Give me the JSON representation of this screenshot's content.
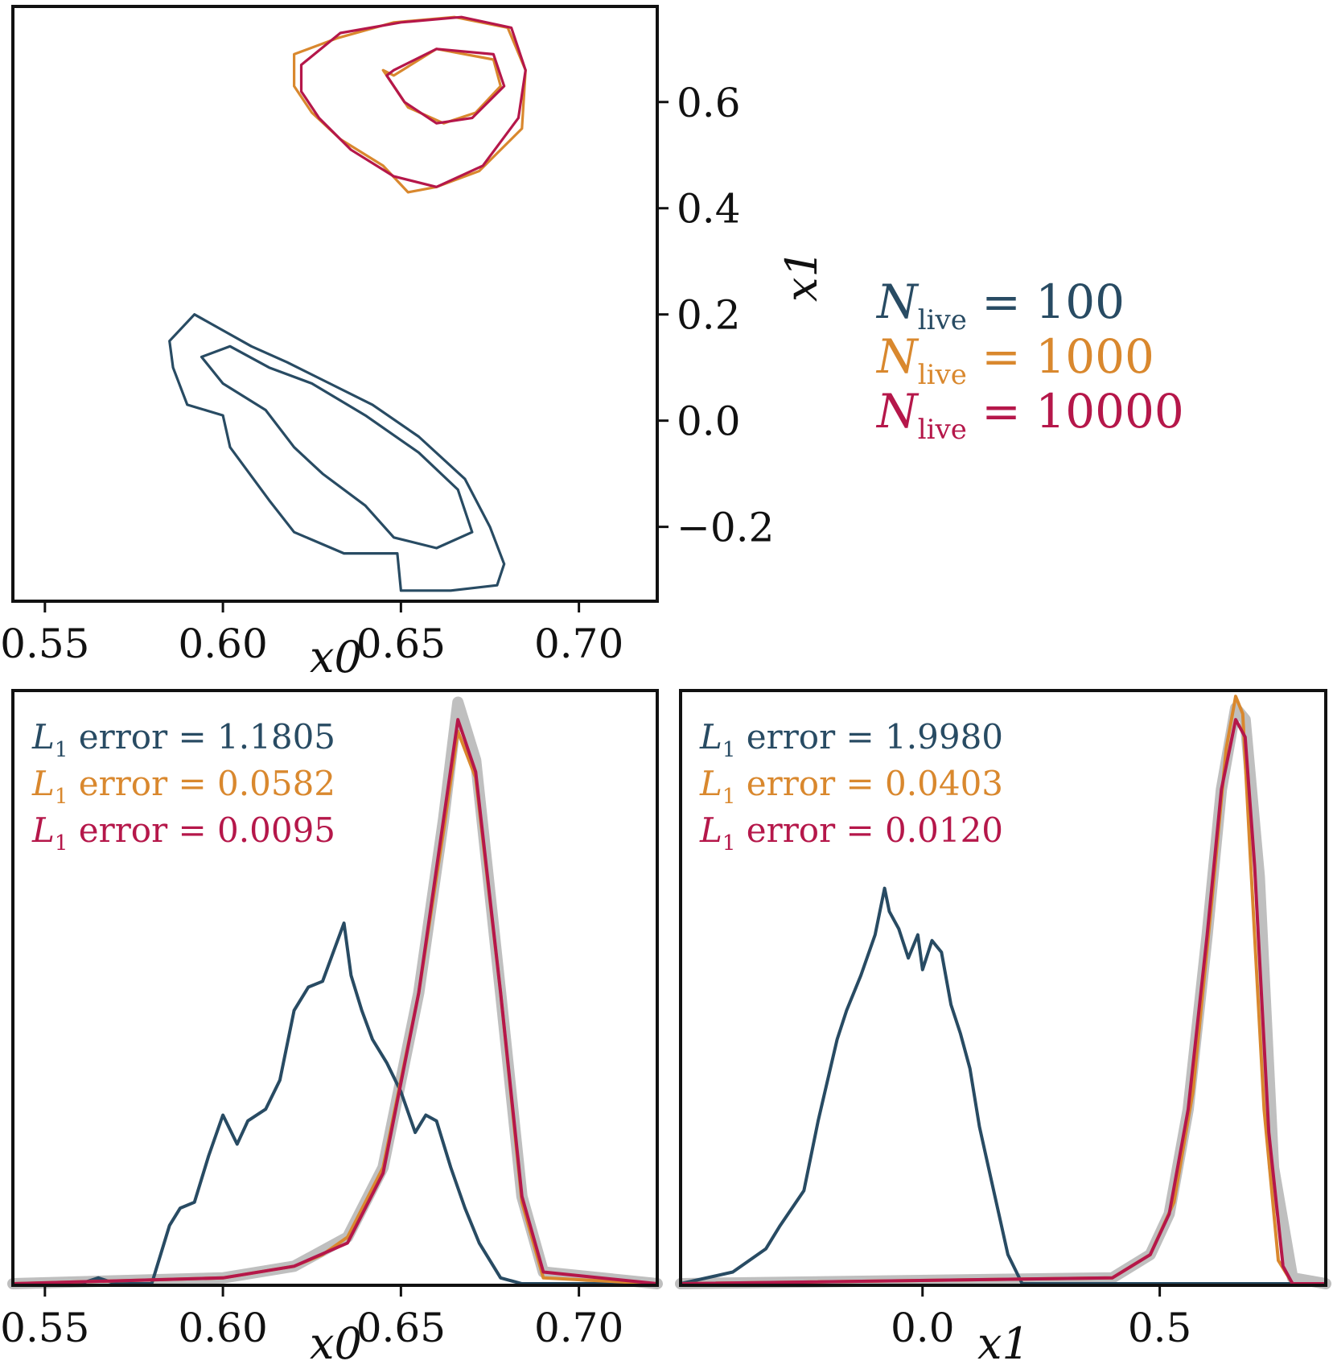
{
  "colors": {
    "n100": "#284b63",
    "n1000": "#d9882e",
    "n10000": "#b5174a",
    "truth": "#bfbfbf"
  },
  "legend": {
    "entries": [
      {
        "prefix": "N",
        "sub": "live",
        "suffix": " = 100",
        "color_key": "n100"
      },
      {
        "prefix": "N",
        "sub": "live",
        "suffix": " = 1000",
        "color_key": "n1000"
      },
      {
        "prefix": "N",
        "sub": "live",
        "suffix": " = 10000",
        "color_key": "n10000"
      }
    ]
  },
  "chart_data": [
    {
      "id": "contour",
      "type": "contour",
      "xlabel": "x0",
      "ylabel": "x1",
      "xlim": [
        0.541,
        0.722
      ],
      "ylim": [
        -0.34,
        0.78
      ],
      "xticks": [
        "0.55",
        "0.60",
        "0.65",
        "0.70"
      ],
      "xtick_values": [
        0.55,
        0.6,
        0.65,
        0.7
      ],
      "yticks": [
        "0.6",
        "0.4",
        "0.2",
        "0.0",
        "−0.2"
      ],
      "ytick_values": [
        0.6,
        0.4,
        0.2,
        0.0,
        -0.2
      ],
      "series": [
        {
          "name": "N_live = 100",
          "color_key": "n100",
          "outer": [
            [
              0.585,
              0.15
            ],
            [
              0.592,
              0.2
            ],
            [
              0.6,
              0.17
            ],
            [
              0.608,
              0.14
            ],
            [
              0.618,
              0.11
            ],
            [
              0.63,
              0.07
            ],
            [
              0.642,
              0.03
            ],
            [
              0.655,
              -0.03
            ],
            [
              0.668,
              -0.11
            ],
            [
              0.675,
              -0.2
            ],
            [
              0.679,
              -0.27
            ],
            [
              0.677,
              -0.31
            ],
            [
              0.664,
              -0.32
            ],
            [
              0.65,
              -0.32
            ],
            [
              0.649,
              -0.25
            ],
            [
              0.634,
              -0.25
            ],
            [
              0.62,
              -0.21
            ],
            [
              0.613,
              -0.15
            ],
            [
              0.602,
              -0.05
            ],
            [
              0.6,
              0.01
            ],
            [
              0.59,
              0.03
            ],
            [
              0.586,
              0.1
            ],
            [
              0.585,
              0.15
            ]
          ],
          "inner": [
            [
              0.594,
              0.12
            ],
            [
              0.602,
              0.14
            ],
            [
              0.613,
              0.1
            ],
            [
              0.625,
              0.07
            ],
            [
              0.64,
              0.01
            ],
            [
              0.655,
              -0.06
            ],
            [
              0.666,
              -0.13
            ],
            [
              0.67,
              -0.21
            ],
            [
              0.66,
              -0.24
            ],
            [
              0.648,
              -0.22
            ],
            [
              0.64,
              -0.16
            ],
            [
              0.628,
              -0.1
            ],
            [
              0.62,
              -0.05
            ],
            [
              0.612,
              0.02
            ],
            [
              0.6,
              0.07
            ],
            [
              0.594,
              0.12
            ]
          ]
        },
        {
          "name": "N_live = 1000",
          "color_key": "n1000",
          "outer": [
            [
              0.62,
              0.69
            ],
            [
              0.632,
              0.72
            ],
            [
              0.648,
              0.75
            ],
            [
              0.665,
              0.76
            ],
            [
              0.68,
              0.74
            ],
            [
              0.685,
              0.66
            ],
            [
              0.684,
              0.55
            ],
            [
              0.672,
              0.47
            ],
            [
              0.66,
              0.44
            ],
            [
              0.652,
              0.43
            ],
            [
              0.645,
              0.48
            ],
            [
              0.633,
              0.53
            ],
            [
              0.625,
              0.58
            ],
            [
              0.62,
              0.63
            ],
            [
              0.62,
              0.69
            ]
          ],
          "inner": [
            [
              0.648,
              0.65
            ],
            [
              0.66,
              0.7
            ],
            [
              0.676,
              0.68
            ],
            [
              0.678,
              0.63
            ],
            [
              0.671,
              0.58
            ],
            [
              0.662,
              0.56
            ],
            [
              0.652,
              0.59
            ],
            [
              0.645,
              0.66
            ],
            [
              0.648,
              0.65
            ]
          ]
        },
        {
          "name": "N_live = 10000",
          "color_key": "n10000",
          "outer": [
            [
              0.622,
              0.67
            ],
            [
              0.633,
              0.73
            ],
            [
              0.65,
              0.75
            ],
            [
              0.667,
              0.76
            ],
            [
              0.681,
              0.74
            ],
            [
              0.685,
              0.66
            ],
            [
              0.683,
              0.57
            ],
            [
              0.673,
              0.48
            ],
            [
              0.66,
              0.44
            ],
            [
              0.648,
              0.46
            ],
            [
              0.636,
              0.51
            ],
            [
              0.627,
              0.57
            ],
            [
              0.622,
              0.62
            ],
            [
              0.622,
              0.67
            ]
          ],
          "inner": [
            [
              0.648,
              0.66
            ],
            [
              0.66,
              0.7
            ],
            [
              0.676,
              0.69
            ],
            [
              0.679,
              0.63
            ],
            [
              0.67,
              0.57
            ],
            [
              0.66,
              0.56
            ],
            [
              0.651,
              0.6
            ],
            [
              0.646,
              0.65
            ],
            [
              0.648,
              0.66
            ]
          ]
        }
      ]
    },
    {
      "id": "marg_x0",
      "type": "line",
      "xlabel": "x0",
      "xlim": [
        0.541,
        0.722
      ],
      "ylim": [
        0,
        1.02
      ],
      "xticks": [
        "0.55",
        "0.60",
        "0.65",
        "0.70"
      ],
      "xtick_values": [
        0.55,
        0.6,
        0.65,
        0.7
      ],
      "annotations": [
        {
          "prefix": "L",
          "sub": "1",
          "text": " error = 1.1805",
          "color_key": "n100"
        },
        {
          "prefix": "L",
          "sub": "1",
          "text": " error = 0.0582",
          "color_key": "n1000"
        },
        {
          "prefix": "L",
          "sub": "1",
          "text": " error = 0.0095",
          "color_key": "n10000"
        }
      ],
      "series": [
        {
          "name": "truth",
          "color_key": "truth",
          "x": [
            0.541,
            0.6,
            0.62,
            0.635,
            0.645,
            0.655,
            0.662,
            0.666,
            0.671,
            0.678,
            0.684,
            0.69,
            0.722
          ],
          "y": [
            0,
            0.01,
            0.03,
            0.08,
            0.2,
            0.5,
            0.8,
            1.0,
            0.9,
            0.5,
            0.15,
            0.02,
            0
          ]
        },
        {
          "name": "N_live = 100",
          "color_key": "n100",
          "x": [
            0.541,
            0.56,
            0.565,
            0.57,
            0.58,
            0.585,
            0.588,
            0.592,
            0.596,
            0.6,
            0.604,
            0.607,
            0.612,
            0.616,
            0.62,
            0.624,
            0.628,
            0.631,
            0.634,
            0.636,
            0.639,
            0.642,
            0.646,
            0.65,
            0.654,
            0.657,
            0.66,
            0.664,
            0.668,
            0.672,
            0.678,
            0.684,
            0.722
          ],
          "y": [
            0,
            0,
            0.01,
            0,
            0,
            0.1,
            0.13,
            0.14,
            0.22,
            0.29,
            0.24,
            0.28,
            0.3,
            0.35,
            0.47,
            0.51,
            0.52,
            0.57,
            0.62,
            0.53,
            0.47,
            0.42,
            0.38,
            0.33,
            0.26,
            0.29,
            0.28,
            0.2,
            0.13,
            0.07,
            0.01,
            0,
            0
          ]
        },
        {
          "name": "N_live = 1000",
          "color_key": "n1000",
          "x": [
            0.541,
            0.6,
            0.62,
            0.628,
            0.635,
            0.645,
            0.655,
            0.662,
            0.666,
            0.671,
            0.678,
            0.684,
            0.69,
            0.722
          ],
          "y": [
            0,
            0.01,
            0.03,
            0.05,
            0.08,
            0.2,
            0.5,
            0.78,
            0.95,
            0.87,
            0.5,
            0.14,
            0.01,
            0
          ]
        },
        {
          "name": "N_live = 10000",
          "color_key": "n10000",
          "x": [
            0.541,
            0.6,
            0.62,
            0.635,
            0.645,
            0.655,
            0.662,
            0.666,
            0.671,
            0.678,
            0.684,
            0.69,
            0.722
          ],
          "y": [
            0,
            0.01,
            0.03,
            0.07,
            0.19,
            0.5,
            0.8,
            0.97,
            0.88,
            0.5,
            0.15,
            0.02,
            0
          ]
        }
      ]
    },
    {
      "id": "marg_x1",
      "type": "line",
      "xlabel": "x1",
      "xlim": [
        -0.51,
        0.85
      ],
      "ylim": [
        0,
        1.02
      ],
      "xticks": [
        "0.0",
        "0.5"
      ],
      "xtick_values": [
        0.0,
        0.5
      ],
      "annotations": [
        {
          "prefix": "L",
          "sub": "1",
          "text": " error = 1.9980",
          "color_key": "n100"
        },
        {
          "prefix": "L",
          "sub": "1",
          "text": " error = 0.0403",
          "color_key": "n1000"
        },
        {
          "prefix": "L",
          "sub": "1",
          "text": " error = 0.0120",
          "color_key": "n10000"
        }
      ],
      "series": [
        {
          "name": "truth",
          "color_key": "truth",
          "x": [
            -0.51,
            0.4,
            0.48,
            0.52,
            0.56,
            0.6,
            0.63,
            0.66,
            0.68,
            0.71,
            0.74,
            0.78,
            0.85
          ],
          "y": [
            0,
            0.01,
            0.05,
            0.12,
            0.3,
            0.6,
            0.85,
            0.99,
            0.97,
            0.7,
            0.2,
            0.01,
            0
          ]
        },
        {
          "name": "N_live = 100",
          "color_key": "n100",
          "x": [
            -0.51,
            -0.4,
            -0.33,
            -0.3,
            -0.25,
            -0.22,
            -0.18,
            -0.16,
            -0.13,
            -0.1,
            -0.08,
            -0.07,
            -0.05,
            -0.03,
            -0.01,
            0.0,
            0.02,
            0.04,
            0.06,
            0.08,
            0.1,
            0.12,
            0.15,
            0.18,
            0.21,
            0.85
          ],
          "y": [
            0,
            0.02,
            0.06,
            0.1,
            0.16,
            0.28,
            0.42,
            0.47,
            0.53,
            0.6,
            0.68,
            0.64,
            0.61,
            0.56,
            0.6,
            0.54,
            0.59,
            0.57,
            0.48,
            0.43,
            0.37,
            0.27,
            0.16,
            0.05,
            0,
            0
          ]
        },
        {
          "name": "N_live = 1000",
          "color_key": "n1000",
          "x": [
            -0.51,
            0.4,
            0.48,
            0.53,
            0.57,
            0.61,
            0.64,
            0.66,
            0.675,
            0.69,
            0.72,
            0.75,
            0.78,
            0.85
          ],
          "y": [
            0,
            0.01,
            0.05,
            0.14,
            0.33,
            0.66,
            0.92,
            1.01,
            0.98,
            0.75,
            0.3,
            0.04,
            0,
            0
          ]
        },
        {
          "name": "N_live = 10000",
          "color_key": "n10000",
          "x": [
            -0.51,
            0.4,
            0.48,
            0.52,
            0.56,
            0.6,
            0.63,
            0.66,
            0.68,
            0.7,
            0.73,
            0.76,
            0.78,
            0.85
          ],
          "y": [
            0,
            0.01,
            0.05,
            0.12,
            0.3,
            0.6,
            0.85,
            0.97,
            0.94,
            0.72,
            0.26,
            0.03,
            0,
            0
          ]
        }
      ]
    }
  ]
}
